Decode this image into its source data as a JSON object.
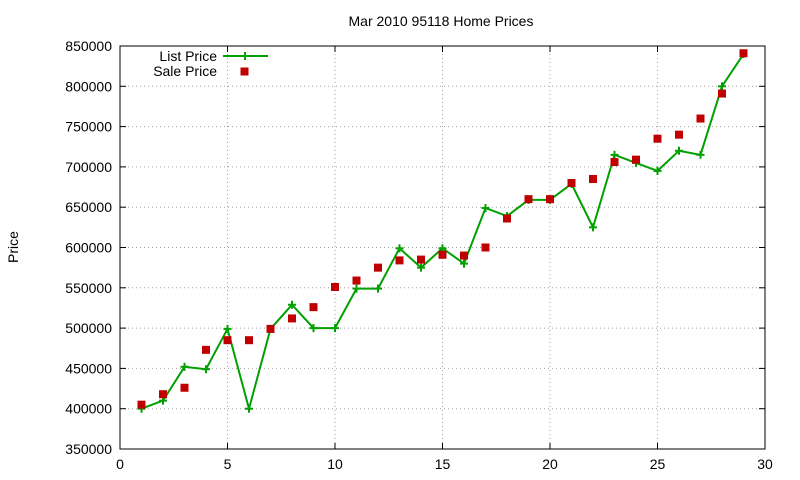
{
  "chart_data": {
    "type": "line",
    "title": "Mar 2010 95118 Home Prices",
    "xlabel": "",
    "ylabel": "Price",
    "xlim": [
      0,
      30
    ],
    "ylim": [
      350000,
      850000
    ],
    "xticks": [
      0,
      5,
      10,
      15,
      20,
      25,
      30
    ],
    "yticks": [
      350000,
      400000,
      450000,
      500000,
      550000,
      600000,
      650000,
      700000,
      750000,
      800000,
      850000
    ],
    "grid": true,
    "legend_position": "top-left",
    "x": [
      1,
      2,
      3,
      4,
      5,
      6,
      7,
      8,
      9,
      10,
      11,
      12,
      13,
      14,
      15,
      16,
      17,
      18,
      19,
      20,
      21,
      22,
      23,
      24,
      25,
      26,
      27,
      28,
      29
    ],
    "series": [
      {
        "name": "List Price",
        "style": "line-plus",
        "color": "#00a000",
        "values": [
          400000,
          410000,
          452000,
          449000,
          499000,
          400000,
          499000,
          529000,
          500000,
          500000,
          549000,
          549000,
          599000,
          575000,
          599000,
          580000,
          649000,
          639000,
          659000,
          659000,
          679000,
          625000,
          715000,
          705000,
          695000,
          720000,
          715000,
          800000,
          840000
        ]
      },
      {
        "name": "Sale Price",
        "style": "square-marker",
        "color": "#c00000",
        "values": [
          405000,
          418000,
          426000,
          473000,
          485000,
          485000,
          499000,
          512000,
          526000,
          551000,
          559000,
          575000,
          584000,
          585000,
          591000,
          590000,
          600000,
          636000,
          660000,
          660000,
          680000,
          685000,
          706000,
          709000,
          735000,
          740000,
          760000,
          791000,
          841000
        ]
      }
    ]
  }
}
